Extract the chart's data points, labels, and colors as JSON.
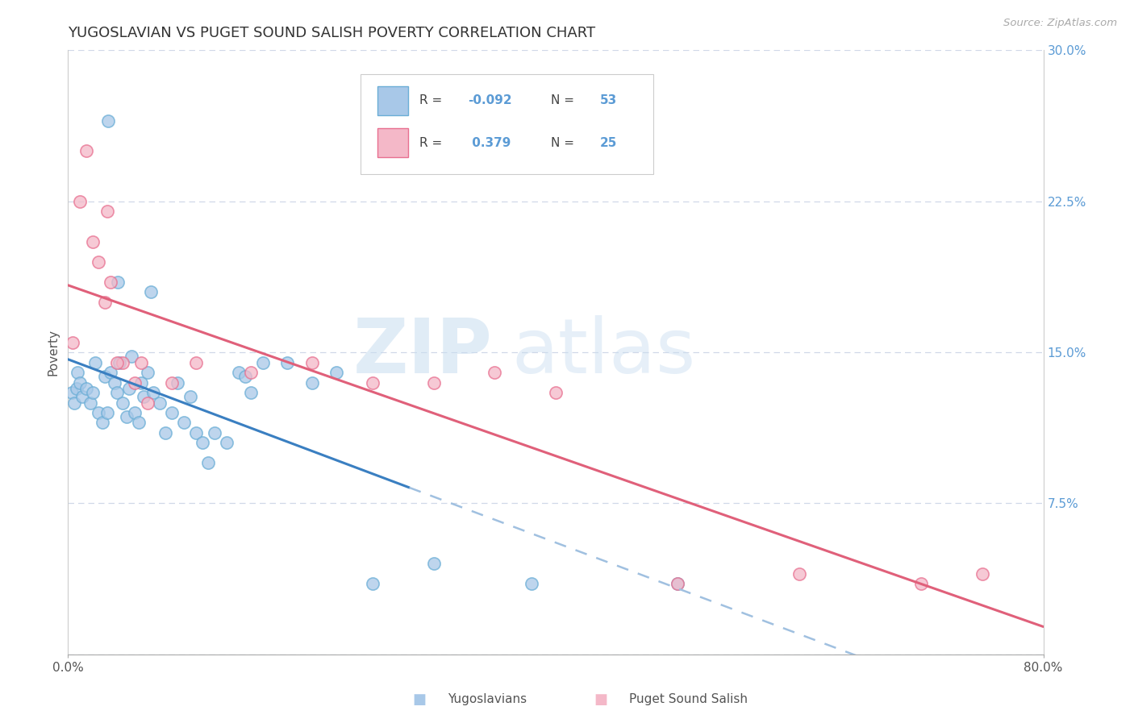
{
  "title": "YUGOSLAVIAN VS PUGET SOUND SALISH POVERTY CORRELATION CHART",
  "source": "Source: ZipAtlas.com",
  "xlabel_yugoslavians": "Yugoslavians",
  "xlabel_puget": "Puget Sound Salish",
  "ylabel": "Poverty",
  "xlim": [
    0,
    80
  ],
  "ylim": [
    0,
    30
  ],
  "yticks": [
    0,
    7.5,
    15.0,
    22.5,
    30.0
  ],
  "yticklabels": [
    "",
    "7.5%",
    "15.0%",
    "22.5%",
    "30.0%"
  ],
  "blue_color": "#a8c8e8",
  "blue_edge_color": "#6baed6",
  "pink_color": "#f4b8c8",
  "pink_edge_color": "#e87090",
  "blue_line_color": "#3a7fc1",
  "pink_line_color": "#e0607a",
  "blue_dashed_color": "#a0c0e0",
  "R_blue": -0.092,
  "N_blue": 53,
  "R_pink": 0.379,
  "N_pink": 25,
  "blue_scatter_x": [
    0.3,
    0.5,
    0.7,
    0.8,
    1.0,
    1.2,
    1.5,
    1.8,
    2.0,
    2.2,
    2.5,
    2.8,
    3.0,
    3.2,
    3.5,
    3.8,
    4.0,
    4.2,
    4.5,
    4.8,
    5.0,
    5.2,
    5.5,
    5.8,
    6.0,
    6.2,
    6.5,
    7.0,
    7.5,
    8.0,
    8.5,
    9.0,
    9.5,
    10.0,
    10.5,
    11.0,
    11.5,
    12.0,
    13.0,
    14.0,
    14.5,
    15.0,
    16.0,
    18.0,
    20.0,
    22.0,
    25.0,
    30.0,
    38.0,
    50.0,
    3.3,
    4.1,
    6.8
  ],
  "blue_scatter_y": [
    13.0,
    12.5,
    13.2,
    14.0,
    13.5,
    12.8,
    13.2,
    12.5,
    13.0,
    14.5,
    12.0,
    11.5,
    13.8,
    12.0,
    14.0,
    13.5,
    13.0,
    14.5,
    12.5,
    11.8,
    13.2,
    14.8,
    12.0,
    11.5,
    13.5,
    12.8,
    14.0,
    13.0,
    12.5,
    11.0,
    12.0,
    13.5,
    11.5,
    12.8,
    11.0,
    10.5,
    9.5,
    11.0,
    10.5,
    14.0,
    13.8,
    13.0,
    14.5,
    14.5,
    13.5,
    14.0,
    3.5,
    4.5,
    3.5,
    3.5,
    26.5,
    18.5,
    18.0
  ],
  "pink_scatter_x": [
    0.4,
    1.0,
    1.5,
    2.0,
    2.5,
    3.0,
    3.5,
    4.5,
    5.5,
    6.5,
    8.5,
    10.5,
    15.0,
    20.0,
    25.0,
    30.0,
    35.0,
    40.0,
    50.0,
    60.0,
    70.0,
    75.0,
    3.2,
    4.0,
    6.0
  ],
  "pink_scatter_y": [
    15.5,
    22.5,
    25.0,
    20.5,
    19.5,
    17.5,
    18.5,
    14.5,
    13.5,
    12.5,
    13.5,
    14.5,
    14.0,
    14.5,
    13.5,
    13.5,
    14.0,
    13.0,
    3.5,
    4.0,
    3.5,
    4.0,
    22.0,
    14.5,
    14.5
  ],
  "watermark_zip": "ZIP",
  "watermark_atlas": "atlas",
  "background_color": "#ffffff",
  "grid_color": "#d0d8e8"
}
